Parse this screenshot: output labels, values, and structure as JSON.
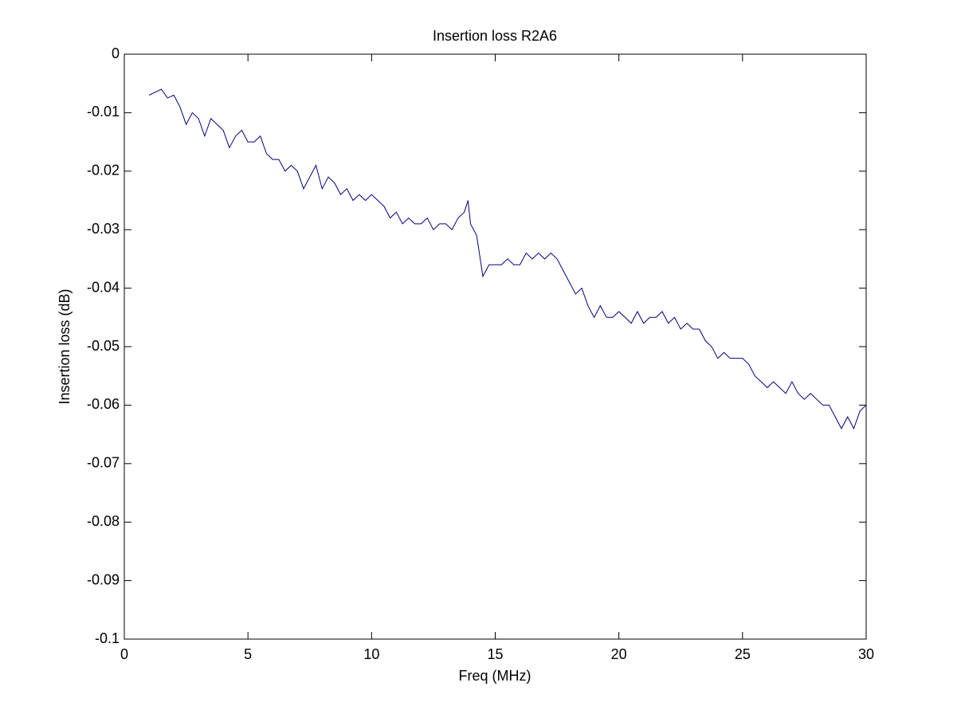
{
  "chart_data": {
    "type": "line",
    "title": "Insertion loss R2A6",
    "x_label": "Freq (MHz)",
    "y_label": "Insertion loss (dB)",
    "x": [
      1.0,
      1.25,
      1.5,
      1.75,
      2.0,
      2.25,
      2.5,
      2.75,
      3.0,
      3.25,
      3.5,
      3.75,
      4.0,
      4.25,
      4.5,
      4.75,
      5.0,
      5.25,
      5.5,
      5.75,
      6.0,
      6.25,
      6.5,
      6.75,
      7.0,
      7.25,
      7.5,
      7.75,
      8.0,
      8.25,
      8.5,
      8.75,
      9.0,
      9.25,
      9.5,
      9.75,
      10.0,
      10.25,
      10.5,
      10.75,
      11.0,
      11.25,
      11.5,
      11.75,
      12.0,
      12.25,
      12.5,
      12.75,
      13.0,
      13.25,
      13.5,
      13.75,
      13.9,
      14.0,
      14.25,
      14.5,
      14.75,
      15.0,
      15.25,
      15.5,
      15.75,
      16.0,
      16.25,
      16.5,
      16.75,
      17.0,
      17.25,
      17.5,
      17.75,
      18.0,
      18.25,
      18.5,
      18.75,
      19.0,
      19.25,
      19.5,
      19.75,
      20.0,
      20.25,
      20.5,
      20.75,
      21.0,
      21.25,
      21.5,
      21.75,
      22.0,
      22.25,
      22.5,
      22.75,
      23.0,
      23.25,
      23.5,
      23.75,
      24.0,
      24.25,
      24.5,
      24.75,
      25.0,
      25.25,
      25.5,
      25.75,
      26.0,
      26.25,
      26.5,
      26.75,
      27.0,
      27.25,
      27.5,
      27.75,
      28.0,
      28.25,
      28.5,
      28.75,
      29.0,
      29.25,
      29.5,
      29.75,
      30.0
    ],
    "series": [
      {
        "name": "Insertion loss",
        "color": "#000080",
        "values": [
          -0.007,
          -0.0065,
          -0.006,
          -0.0075,
          -0.007,
          -0.009,
          -0.012,
          -0.01,
          -0.011,
          -0.014,
          -0.011,
          -0.012,
          -0.013,
          -0.016,
          -0.014,
          -0.013,
          -0.015,
          -0.015,
          -0.014,
          -0.017,
          -0.018,
          -0.018,
          -0.02,
          -0.019,
          -0.02,
          -0.023,
          -0.021,
          -0.019,
          -0.023,
          -0.021,
          -0.022,
          -0.024,
          -0.023,
          -0.025,
          -0.024,
          -0.025,
          -0.024,
          -0.025,
          -0.026,
          -0.028,
          -0.027,
          -0.029,
          -0.028,
          -0.029,
          -0.029,
          -0.028,
          -0.03,
          -0.029,
          -0.029,
          -0.03,
          -0.028,
          -0.027,
          -0.025,
          -0.029,
          -0.031,
          -0.038,
          -0.036,
          -0.036,
          -0.036,
          -0.035,
          -0.036,
          -0.036,
          -0.034,
          -0.035,
          -0.034,
          -0.035,
          -0.034,
          -0.035,
          -0.037,
          -0.039,
          -0.041,
          -0.04,
          -0.043,
          -0.045,
          -0.043,
          -0.045,
          -0.045,
          -0.044,
          -0.045,
          -0.046,
          -0.044,
          -0.046,
          -0.045,
          -0.045,
          -0.044,
          -0.046,
          -0.045,
          -0.047,
          -0.046,
          -0.047,
          -0.047,
          -0.049,
          -0.05,
          -0.052,
          -0.051,
          -0.052,
          -0.052,
          -0.052,
          -0.053,
          -0.055,
          -0.056,
          -0.057,
          -0.056,
          -0.057,
          -0.058,
          -0.056,
          -0.058,
          -0.059,
          -0.058,
          -0.059,
          -0.06,
          -0.06,
          -0.062,
          -0.064,
          -0.062,
          -0.064,
          -0.061,
          -0.06
        ]
      }
    ],
    "xlim": [
      0,
      30
    ],
    "xticks": [
      0,
      5,
      10,
      15,
      20,
      25,
      30
    ],
    "ylim": [
      -0.1,
      0
    ],
    "yticks": [
      0,
      -0.01,
      -0.02,
      -0.03,
      -0.04,
      -0.05,
      -0.06,
      -0.07,
      -0.08,
      -0.09,
      -0.1
    ]
  }
}
